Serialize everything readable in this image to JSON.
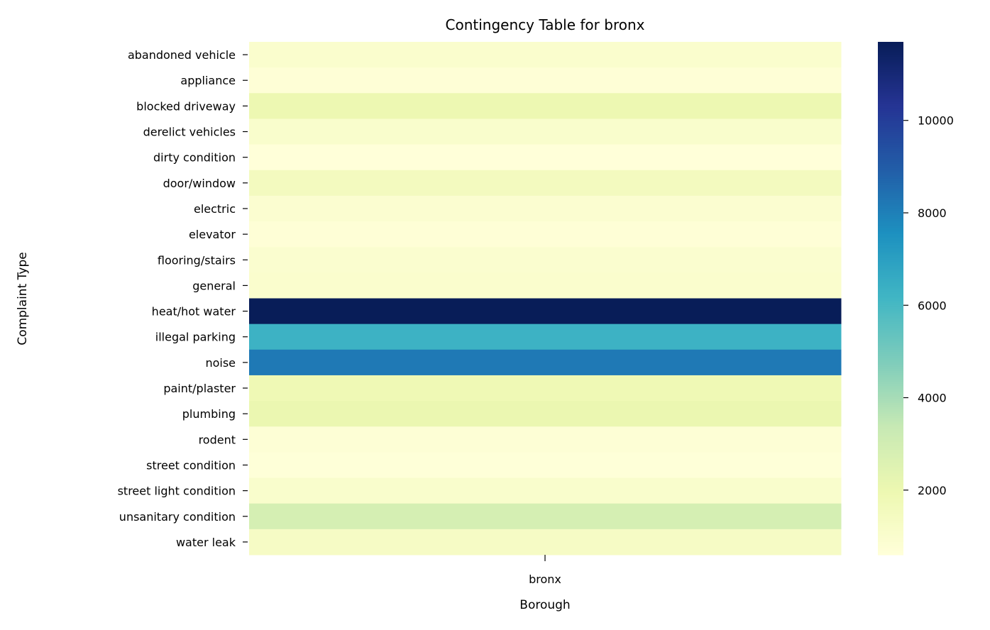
{
  "chart_data": {
    "type": "heatmap",
    "title": "Contingency Table for bronx",
    "xlabel": "Borough",
    "ylabel": "Complaint Type",
    "columns": [
      "bronx"
    ],
    "rows": [
      "abandoned vehicle",
      "appliance",
      "blocked driveway",
      "derelict vehicles",
      "dirty condition",
      "door/window",
      "electric",
      "elevator",
      "flooring/stairs",
      "general",
      "heat/hot water",
      "illegal parking",
      "noise",
      "paint/plaster",
      "plumbing",
      "rodent",
      "street condition",
      "street light condition",
      "unsanitary condition",
      "water leak"
    ],
    "values": [
      [
        1000
      ],
      [
        700
      ],
      [
        1950
      ],
      [
        1050
      ],
      [
        600
      ],
      [
        1500
      ],
      [
        900
      ],
      [
        700
      ],
      [
        950
      ],
      [
        1000
      ],
      [
        11700
      ],
      [
        6300
      ],
      [
        8200
      ],
      [
        1850
      ],
      [
        2050
      ],
      [
        750
      ],
      [
        650
      ],
      [
        1050
      ],
      [
        2850
      ],
      [
        1300
      ]
    ],
    "colormap": "YlGnBu",
    "colorbar": {
      "min": 600,
      "max": 11700,
      "ticks": [
        2000,
        4000,
        6000,
        8000,
        10000
      ]
    },
    "grid": false,
    "legend": "right"
  }
}
